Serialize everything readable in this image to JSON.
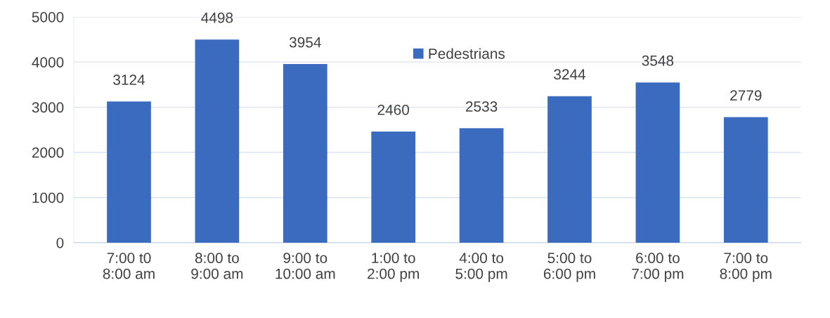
{
  "chart_data": {
    "type": "bar",
    "categories": [
      "7:00 t0\n8:00 am",
      "8:00 to\n9:00 am",
      "9:00 to\n10:00 am",
      "1:00 to\n2:00 pm",
      "4:00 to\n5:00 pm",
      "5:00 to\n6:00 pm",
      "6:00 to\n7:00 pm",
      "7:00 to\n8:00 pm"
    ],
    "series": [
      {
        "name": "Pedestrians",
        "color": "#3a6bbf",
        "values": [
          3124,
          4498,
          3954,
          2460,
          2533,
          3244,
          3548,
          2779
        ]
      }
    ],
    "ylim": [
      0,
      5000
    ],
    "yticks": [
      0,
      1000,
      2000,
      3000,
      4000,
      5000
    ],
    "grid": "y",
    "legend": "top",
    "data_labels": true
  }
}
